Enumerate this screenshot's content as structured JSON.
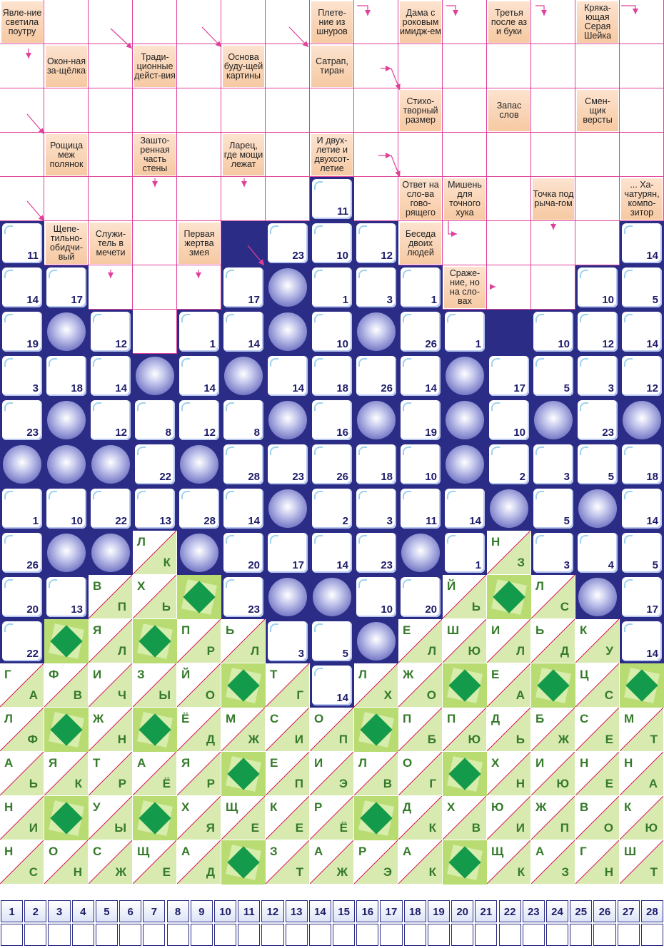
{
  "clues": [
    {
      "r": 0,
      "c": 0,
      "text": "Явле-ние светила поутру"
    },
    {
      "r": 0,
      "c": 7,
      "text": "Плете-ние из шнуров"
    },
    {
      "r": 0,
      "c": 9,
      "text": "Дама с роковым имидж-ем"
    },
    {
      "r": 0,
      "c": 11,
      "text": "Третья после аз и буки"
    },
    {
      "r": 0,
      "c": 13,
      "text": "Кряка-ющая Серая Шейка"
    },
    {
      "r": 1,
      "c": 1,
      "text": "Окон-ная за-щёлка"
    },
    {
      "r": 1,
      "c": 3,
      "text": "Тради-ционные дейст-вия"
    },
    {
      "r": 1,
      "c": 5,
      "text": "Основа буду-щей картины"
    },
    {
      "r": 1,
      "c": 7,
      "text": "Сатрап, тиран"
    },
    {
      "r": 2,
      "c": 9,
      "text": "Стихо-творный размер"
    },
    {
      "r": 2,
      "c": 11,
      "text": "Запас слов"
    },
    {
      "r": 2,
      "c": 13,
      "text": "Смен-щик версты"
    },
    {
      "r": 3,
      "c": 1,
      "text": "Рощица меж полянок"
    },
    {
      "r": 3,
      "c": 3,
      "text": "Зашто-ренная часть стены"
    },
    {
      "r": 3,
      "c": 5,
      "text": "Ларец, где мощи лежат"
    },
    {
      "r": 3,
      "c": 7,
      "text": "И двух-летие и двухсот-летие"
    },
    {
      "r": 4,
      "c": 9,
      "text": "Ответ на сло-ва гово-рящего"
    },
    {
      "r": 4,
      "c": 10,
      "text": "Мишень для точного хука"
    },
    {
      "r": 4,
      "c": 12,
      "text": "Точка под рыча-гом"
    },
    {
      "r": 4,
      "c": 14,
      "text": "... Ха-чатурян, компо-зитор"
    },
    {
      "r": 5,
      "c": 1,
      "text": "Щепе-тильно-обидчи-вый"
    },
    {
      "r": 5,
      "c": 2,
      "text": "Служи-тель в мечети"
    },
    {
      "r": 5,
      "c": 4,
      "text": "Первая жертва змея"
    },
    {
      "r": 5,
      "c": 9,
      "text": "Беседа двоих людей"
    },
    {
      "r": 6,
      "c": 10,
      "text": "Сраже-ние, но на сло-вах"
    }
  ],
  "blanks": [
    [
      0,
      1
    ],
    [
      0,
      2
    ],
    [
      0,
      3
    ],
    [
      0,
      4
    ],
    [
      0,
      5
    ],
    [
      0,
      6
    ],
    [
      0,
      8
    ],
    [
      0,
      10
    ],
    [
      0,
      12
    ],
    [
      0,
      14
    ],
    [
      1,
      0
    ],
    [
      1,
      2
    ],
    [
      1,
      4
    ],
    [
      1,
      6
    ],
    [
      1,
      8
    ],
    [
      1,
      9
    ],
    [
      1,
      10
    ],
    [
      1,
      11
    ],
    [
      1,
      12
    ],
    [
      1,
      13
    ],
    [
      1,
      14
    ],
    [
      2,
      0
    ],
    [
      2,
      1
    ],
    [
      2,
      2
    ],
    [
      2,
      3
    ],
    [
      2,
      4
    ],
    [
      2,
      5
    ],
    [
      2,
      6
    ],
    [
      2,
      7
    ],
    [
      2,
      8
    ],
    [
      2,
      10
    ],
    [
      2,
      12
    ],
    [
      2,
      14
    ],
    [
      3,
      0
    ],
    [
      3,
      2
    ],
    [
      3,
      4
    ],
    [
      3,
      6
    ],
    [
      3,
      8
    ],
    [
      3,
      9
    ],
    [
      3,
      10
    ],
    [
      3,
      11
    ],
    [
      3,
      12
    ],
    [
      3,
      13
    ],
    [
      3,
      14
    ],
    [
      4,
      0
    ],
    [
      4,
      1
    ],
    [
      4,
      2
    ],
    [
      4,
      3
    ],
    [
      4,
      4
    ],
    [
      4,
      5
    ],
    [
      4,
      6
    ],
    [
      4,
      8
    ],
    [
      4,
      11
    ],
    [
      4,
      13
    ],
    [
      5,
      3
    ],
    [
      5,
      10
    ],
    [
      5,
      11
    ],
    [
      5,
      12
    ],
    [
      5,
      13
    ],
    [
      6,
      2
    ],
    [
      6,
      3
    ],
    [
      6,
      4
    ],
    [
      6,
      11
    ],
    [
      6,
      12
    ],
    [
      7,
      3
    ]
  ],
  "numbered": [
    {
      "r": 4,
      "c": 7,
      "n": "11"
    },
    {
      "r": 5,
      "c": 0,
      "n": "11"
    },
    {
      "r": 5,
      "c": 6,
      "n": "23"
    },
    {
      "r": 5,
      "c": 7,
      "n": "10"
    },
    {
      "r": 5,
      "c": 8,
      "n": "12"
    },
    {
      "r": 5,
      "c": 14,
      "n": "14"
    },
    {
      "r": 6,
      "c": 0,
      "n": "14"
    },
    {
      "r": 6,
      "c": 1,
      "n": "17"
    },
    {
      "r": 6,
      "c": 5,
      "n": "17"
    },
    {
      "r": 6,
      "c": 7,
      "n": "1"
    },
    {
      "r": 6,
      "c": 8,
      "n": "3"
    },
    {
      "r": 6,
      "c": 9,
      "n": "1"
    },
    {
      "r": 6,
      "c": 13,
      "n": "10"
    },
    {
      "r": 6,
      "c": 14,
      "n": "5"
    },
    {
      "r": 7,
      "c": 0,
      "n": "19"
    },
    {
      "r": 7,
      "c": 2,
      "n": "12"
    },
    {
      "r": 7,
      "c": 4,
      "n": "1"
    },
    {
      "r": 7,
      "c": 5,
      "n": "14"
    },
    {
      "r": 7,
      "c": 7,
      "n": "10"
    },
    {
      "r": 7,
      "c": 9,
      "n": "26"
    },
    {
      "r": 7,
      "c": 10,
      "n": "1"
    },
    {
      "r": 7,
      "c": 12,
      "n": "10"
    },
    {
      "r": 7,
      "c": 13,
      "n": "12"
    },
    {
      "r": 7,
      "c": 14,
      "n": "14"
    },
    {
      "r": 8,
      "c": 0,
      "n": "3"
    },
    {
      "r": 8,
      "c": 1,
      "n": "18"
    },
    {
      "r": 8,
      "c": 2,
      "n": "14"
    },
    {
      "r": 8,
      "c": 4,
      "n": "14"
    },
    {
      "r": 8,
      "c": 6,
      "n": "14"
    },
    {
      "r": 8,
      "c": 7,
      "n": "18"
    },
    {
      "r": 8,
      "c": 8,
      "n": "26"
    },
    {
      "r": 8,
      "c": 9,
      "n": "14"
    },
    {
      "r": 8,
      "c": 11,
      "n": "17"
    },
    {
      "r": 8,
      "c": 12,
      "n": "5"
    },
    {
      "r": 8,
      "c": 13,
      "n": "3"
    },
    {
      "r": 8,
      "c": 14,
      "n": "12"
    },
    {
      "r": 9,
      "c": 0,
      "n": "23"
    },
    {
      "r": 9,
      "c": 2,
      "n": "12"
    },
    {
      "r": 9,
      "c": 3,
      "n": "8"
    },
    {
      "r": 9,
      "c": 4,
      "n": "12"
    },
    {
      "r": 9,
      "c": 5,
      "n": "8"
    },
    {
      "r": 9,
      "c": 7,
      "n": "16"
    },
    {
      "r": 9,
      "c": 9,
      "n": "19"
    },
    {
      "r": 9,
      "c": 11,
      "n": "10"
    },
    {
      "r": 9,
      "c": 13,
      "n": "23"
    },
    {
      "r": 10,
      "c": 3,
      "n": "22"
    },
    {
      "r": 10,
      "c": 5,
      "n": "28"
    },
    {
      "r": 10,
      "c": 6,
      "n": "23"
    },
    {
      "r": 10,
      "c": 7,
      "n": "26"
    },
    {
      "r": 10,
      "c": 8,
      "n": "18"
    },
    {
      "r": 10,
      "c": 9,
      "n": "10"
    },
    {
      "r": 10,
      "c": 11,
      "n": "2"
    },
    {
      "r": 10,
      "c": 12,
      "n": "3"
    },
    {
      "r": 10,
      "c": 13,
      "n": "5"
    },
    {
      "r": 10,
      "c": 14,
      "n": "18"
    },
    {
      "r": 11,
      "c": 0,
      "n": "1"
    },
    {
      "r": 11,
      "c": 1,
      "n": "10"
    },
    {
      "r": 11,
      "c": 2,
      "n": "22"
    },
    {
      "r": 11,
      "c": 3,
      "n": "13"
    },
    {
      "r": 11,
      "c": 4,
      "n": "28"
    },
    {
      "r": 11,
      "c": 5,
      "n": "14"
    },
    {
      "r": 11,
      "c": 7,
      "n": "2"
    },
    {
      "r": 11,
      "c": 8,
      "n": "3"
    },
    {
      "r": 11,
      "c": 9,
      "n": "11"
    },
    {
      "r": 11,
      "c": 10,
      "n": "14"
    },
    {
      "r": 11,
      "c": 12,
      "n": "5"
    },
    {
      "r": 11,
      "c": 14,
      "n": "14"
    },
    {
      "r": 12,
      "c": 0,
      "n": "26"
    },
    {
      "r": 12,
      "c": 5,
      "n": "20"
    },
    {
      "r": 12,
      "c": 6,
      "n": "17"
    },
    {
      "r": 12,
      "c": 7,
      "n": "14"
    },
    {
      "r": 12,
      "c": 8,
      "n": "23"
    },
    {
      "r": 12,
      "c": 10,
      "n": "1"
    },
    {
      "r": 12,
      "c": 12,
      "n": "3"
    },
    {
      "r": 12,
      "c": 13,
      "n": "4"
    },
    {
      "r": 12,
      "c": 14,
      "n": "5"
    },
    {
      "r": 13,
      "c": 0,
      "n": "20"
    },
    {
      "r": 13,
      "c": 1,
      "n": "13"
    },
    {
      "r": 13,
      "c": 5,
      "n": "23"
    },
    {
      "r": 13,
      "c": 8,
      "n": "10"
    },
    {
      "r": 13,
      "c": 9,
      "n": "20"
    },
    {
      "r": 13,
      "c": 14,
      "n": "17"
    },
    {
      "r": 14,
      "c": 0,
      "n": "22"
    },
    {
      "r": 14,
      "c": 6,
      "n": "3"
    },
    {
      "r": 14,
      "c": 7,
      "n": "5"
    },
    {
      "r": 14,
      "c": 14,
      "n": "14"
    },
    {
      "r": 15,
      "c": 7,
      "n": "14"
    }
  ],
  "balls": [
    [
      6,
      6
    ],
    [
      7,
      1
    ],
    [
      7,
      6
    ],
    [
      7,
      8
    ],
    [
      8,
      3
    ],
    [
      8,
      5
    ],
    [
      8,
      10
    ],
    [
      9,
      1
    ],
    [
      9,
      6
    ],
    [
      9,
      8
    ],
    [
      9,
      10
    ],
    [
      9,
      12
    ],
    [
      9,
      14
    ],
    [
      10,
      0
    ],
    [
      10,
      1
    ],
    [
      10,
      2
    ],
    [
      10,
      4
    ],
    [
      10,
      10
    ],
    [
      11,
      6
    ],
    [
      11,
      11
    ],
    [
      11,
      13
    ],
    [
      12,
      1
    ],
    [
      12,
      2
    ],
    [
      12,
      4
    ],
    [
      12,
      9
    ],
    [
      13,
      6
    ],
    [
      13,
      7
    ],
    [
      13,
      13
    ],
    [
      14,
      8
    ]
  ],
  "letters": [
    {
      "r": 12,
      "c": 3,
      "a": "Л",
      "b": "К"
    },
    {
      "r": 12,
      "c": 11,
      "a": "Н",
      "b": "З"
    },
    {
      "r": 13,
      "c": 2,
      "a": "В",
      "b": "П"
    },
    {
      "r": 13,
      "c": 3,
      "a": "Х",
      "b": "Ь"
    },
    {
      "r": 13,
      "c": 10,
      "a": "Й",
      "b": "Ь"
    },
    {
      "r": 13,
      "c": 12,
      "a": "Л",
      "b": "С"
    },
    {
      "r": 14,
      "c": 2,
      "a": "Я",
      "b": "Л"
    },
    {
      "r": 14,
      "c": 4,
      "a": "П",
      "b": "Р"
    },
    {
      "r": 14,
      "c": 5,
      "a": "Ь",
      "b": "Л"
    },
    {
      "r": 14,
      "c": 9,
      "a": "Е",
      "b": "Л"
    },
    {
      "r": 14,
      "c": 10,
      "a": "Ш",
      "b": "Ю"
    },
    {
      "r": 14,
      "c": 11,
      "a": "И",
      "b": "Л"
    },
    {
      "r": 14,
      "c": 12,
      "a": "Ь",
      "b": "Д"
    },
    {
      "r": 14,
      "c": 13,
      "a": "К",
      "b": "У"
    },
    {
      "r": 15,
      "c": 0,
      "a": "Г",
      "b": "А"
    },
    {
      "r": 15,
      "c": 1,
      "a": "Ф",
      "b": "В"
    },
    {
      "r": 15,
      "c": 2,
      "a": "И",
      "b": "Ч"
    },
    {
      "r": 15,
      "c": 3,
      "a": "З",
      "b": "Ы"
    },
    {
      "r": 15,
      "c": 4,
      "a": "Й",
      "b": "О"
    },
    {
      "r": 15,
      "c": 6,
      "a": "Т",
      "b": "Г"
    },
    {
      "r": 15,
      "c": 8,
      "a": "Л",
      "b": "Х"
    },
    {
      "r": 15,
      "c": 9,
      "a": "Ж",
      "b": "О"
    },
    {
      "r": 15,
      "c": 11,
      "a": "Е",
      "b": "А"
    },
    {
      "r": 15,
      "c": 13,
      "a": "Ц",
      "b": "С"
    },
    {
      "r": 16,
      "c": 0,
      "a": "Л",
      "b": "Ф"
    },
    {
      "r": 16,
      "c": 2,
      "a": "Ж",
      "b": "Н"
    },
    {
      "r": 16,
      "c": 4,
      "a": "Ё",
      "b": "Д"
    },
    {
      "r": 16,
      "c": 5,
      "a": "М",
      "b": "Ж"
    },
    {
      "r": 16,
      "c": 6,
      "a": "С",
      "b": "И"
    },
    {
      "r": 16,
      "c": 7,
      "a": "О",
      "b": "П"
    },
    {
      "r": 16,
      "c": 9,
      "a": "П",
      "b": "Б"
    },
    {
      "r": 16,
      "c": 10,
      "a": "П",
      "b": "Ю"
    },
    {
      "r": 16,
      "c": 11,
      "a": "Д",
      "b": "Ь"
    },
    {
      "r": 16,
      "c": 12,
      "a": "Б",
      "b": "Ж"
    },
    {
      "r": 16,
      "c": 13,
      "a": "С",
      "b": "Е"
    },
    {
      "r": 16,
      "c": 14,
      "a": "М",
      "b": "Т"
    },
    {
      "r": 17,
      "c": 0,
      "a": "А",
      "b": "Ь"
    },
    {
      "r": 17,
      "c": 1,
      "a": "Я",
      "b": "К"
    },
    {
      "r": 17,
      "c": 2,
      "a": "Т",
      "b": "Р"
    },
    {
      "r": 17,
      "c": 3,
      "a": "А",
      "b": "Ё"
    },
    {
      "r": 17,
      "c": 4,
      "a": "Я",
      "b": "Р"
    },
    {
      "r": 17,
      "c": 6,
      "a": "Е",
      "b": "П"
    },
    {
      "r": 17,
      "c": 7,
      "a": "И",
      "b": "Э"
    },
    {
      "r": 17,
      "c": 8,
      "a": "Л",
      "b": "В"
    },
    {
      "r": 17,
      "c": 9,
      "a": "О",
      "b": "Г"
    },
    {
      "r": 17,
      "c": 11,
      "a": "Х",
      "b": "Н"
    },
    {
      "r": 17,
      "c": 12,
      "a": "И",
      "b": "Ю"
    },
    {
      "r": 17,
      "c": 13,
      "a": "Н",
      "b": "Е"
    },
    {
      "r": 17,
      "c": 14,
      "a": "Н",
      "b": "А"
    },
    {
      "r": 18,
      "c": 0,
      "a": "Н",
      "b": "И"
    },
    {
      "r": 18,
      "c": 2,
      "a": "У",
      "b": "Ы"
    },
    {
      "r": 18,
      "c": 4,
      "a": "Х",
      "b": "Я"
    },
    {
      "r": 18,
      "c": 5,
      "a": "Щ",
      "b": "Е"
    },
    {
      "r": 18,
      "c": 6,
      "a": "К",
      "b": "Е"
    },
    {
      "r": 18,
      "c": 7,
      "a": "Р",
      "b": "Ё"
    },
    {
      "r": 18,
      "c": 9,
      "a": "Д",
      "b": "К"
    },
    {
      "r": 18,
      "c": 10,
      "a": "Х",
      "b": "В"
    },
    {
      "r": 18,
      "c": 11,
      "a": "Ю",
      "b": "И"
    },
    {
      "r": 18,
      "c": 12,
      "a": "Ж",
      "b": "П"
    },
    {
      "r": 18,
      "c": 13,
      "a": "В",
      "b": "О"
    },
    {
      "r": 18,
      "c": 14,
      "a": "К",
      "b": "Ю"
    },
    {
      "r": 19,
      "c": 0,
      "a": "Н",
      "b": "С"
    },
    {
      "r": 19,
      "c": 1,
      "a": "О",
      "b": "Н"
    },
    {
      "r": 19,
      "c": 2,
      "a": "С",
      "b": "Ж"
    },
    {
      "r": 19,
      "c": 3,
      "a": "Щ",
      "b": "Е"
    },
    {
      "r": 19,
      "c": 4,
      "a": "А",
      "b": "Д"
    },
    {
      "r": 19,
      "c": 6,
      "a": "З",
      "b": "Т"
    },
    {
      "r": 19,
      "c": 7,
      "a": "А",
      "b": "Ж"
    },
    {
      "r": 19,
      "c": 8,
      "a": "Р",
      "b": "Э"
    },
    {
      "r": 19,
      "c": 9,
      "a": "А",
      "b": "К"
    },
    {
      "r": 19,
      "c": 11,
      "a": "Щ",
      "b": "К"
    },
    {
      "r": 19,
      "c": 12,
      "a": "А",
      "b": "З"
    },
    {
      "r": 19,
      "c": 13,
      "a": "Г",
      "b": "Н"
    },
    {
      "r": 19,
      "c": 14,
      "a": "Ш",
      "b": "Т"
    }
  ],
  "gems": [
    [
      13,
      4
    ],
    [
      13,
      11
    ],
    [
      14,
      1
    ],
    [
      14,
      3
    ],
    [
      15,
      5
    ],
    [
      15,
      10
    ],
    [
      15,
      12
    ],
    [
      15,
      14
    ],
    [
      16,
      1
    ],
    [
      16,
      3
    ],
    [
      16,
      8
    ],
    [
      17,
      5
    ],
    [
      17,
      10
    ],
    [
      18,
      1
    ],
    [
      18,
      3
    ],
    [
      18,
      8
    ],
    [
      19,
      5
    ],
    [
      19,
      10
    ]
  ],
  "answer_numbers": [
    "1",
    "2",
    "3",
    "4",
    "5",
    "6",
    "7",
    "8",
    "9",
    "10",
    "11",
    "12",
    "13",
    "14",
    "15",
    "16",
    "17",
    "18",
    "19",
    "20",
    "21",
    "22",
    "23",
    "24",
    "25",
    "26",
    "27",
    "28"
  ],
  "colors": {
    "navy": "#2b2c86",
    "pink": "#e0409a",
    "gem": "#139a4a",
    "letter": "#357a2a"
  }
}
